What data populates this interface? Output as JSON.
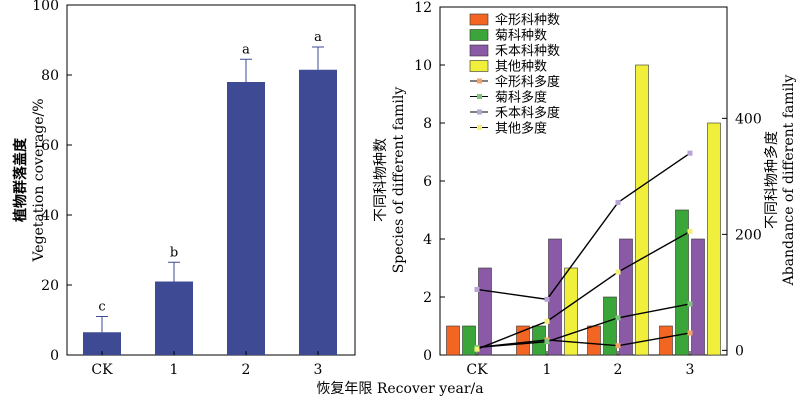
{
  "figure": {
    "shared_xlabel": "恢复年限 Recover year/a"
  },
  "chart_data": [
    {
      "type": "bar",
      "categories": [
        "CK",
        "1",
        "2",
        "3"
      ],
      "values": [
        6.5,
        21,
        78,
        81.5
      ],
      "error": [
        4.5,
        5.5,
        6.5,
        6.5
      ],
      "letters": [
        "c",
        "b",
        "a",
        "a"
      ],
      "ylabel_cn": "植物群落盖度",
      "ylabel_en": "Vegetation coverage/%",
      "ylim": [
        0,
        100
      ],
      "yticks": [
        0,
        20,
        40,
        60,
        80,
        100
      ],
      "color": "#3f4a94"
    },
    {
      "type": "bar+line",
      "categories": [
        "CK",
        "1",
        "2",
        "3"
      ],
      "ylabel_cn": "不同科物种数",
      "ylabel_en": "Species of different family",
      "ylim": [
        0,
        12
      ],
      "yticks": [
        0,
        2,
        4,
        6,
        8,
        10,
        12
      ],
      "y2label_cn": "不同科物种多度",
      "y2label_en": "Abandance of different family",
      "y2ticks": [
        0,
        200,
        400
      ],
      "y2lim": [
        -8,
        592
      ],
      "bar_series": [
        {
          "name": "伞形科种数",
          "color": "#f26522",
          "values": [
            1,
            1,
            1,
            1
          ]
        },
        {
          "name": "菊科种数",
          "color": "#3aa538",
          "values": [
            1,
            1,
            2,
            5
          ]
        },
        {
          "name": "禾本科种数",
          "color": "#8a5aa6",
          "values": [
            3,
            4,
            4,
            4
          ]
        },
        {
          "name": "其他种数",
          "color": "#f0ef3c",
          "values": [
            0,
            3,
            10,
            8
          ]
        }
      ],
      "line_series": [
        {
          "name": "伞形科多度",
          "color": "#f4a261",
          "values": [
            5,
            18,
            8,
            30
          ]
        },
        {
          "name": "菊科多度",
          "color": "#7cc47a",
          "values": [
            5,
            15,
            56,
            80
          ]
        },
        {
          "name": "禾本科多度",
          "color": "#b9a2d4",
          "values": [
            105,
            88,
            255,
            340
          ]
        },
        {
          "name": "其他多度",
          "color": "#f4f07a",
          "values": [
            2,
            50,
            135,
            205
          ]
        }
      ]
    }
  ]
}
